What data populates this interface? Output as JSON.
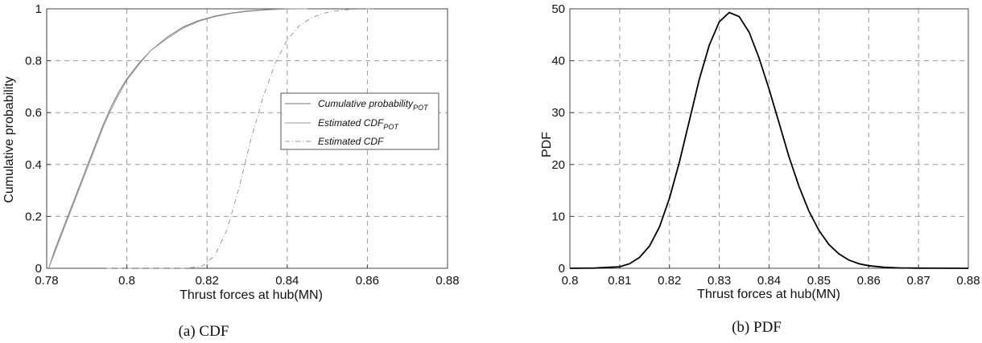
{
  "chart_data": [
    {
      "type": "line",
      "caption": "(a) CDF",
      "xlabel": "Thrust forces at hub(MN)",
      "ylabel": "Cumulative probability",
      "xlim": [
        0.78,
        0.88
      ],
      "ylim": [
        0,
        1
      ],
      "xticks": [
        "0.78",
        "0.8",
        "0.82",
        "0.84",
        "0.86",
        "0.88"
      ],
      "yticks": [
        "0",
        "0.2",
        "0.4",
        "0.6",
        "0.8",
        "1"
      ],
      "grid": true,
      "legend_position": "center-right",
      "series": [
        {
          "name": "Cumulative probability",
          "name_sub": "POT",
          "color": "#777777",
          "x": [
            0.7805,
            0.782,
            0.784,
            0.786,
            0.788,
            0.79,
            0.792,
            0.794,
            0.796,
            0.798,
            0.8,
            0.803,
            0.806,
            0.81,
            0.814,
            0.818,
            0.822,
            0.826,
            0.83,
            0.835,
            0.84,
            0.845
          ],
          "y": [
            0.0,
            0.07,
            0.15,
            0.23,
            0.31,
            0.39,
            0.47,
            0.55,
            0.62,
            0.68,
            0.73,
            0.79,
            0.84,
            0.89,
            0.93,
            0.955,
            0.972,
            0.984,
            0.992,
            0.997,
            1.0,
            1.0
          ]
        },
        {
          "name": "Estimated CDF",
          "name_sub": "POT",
          "color": "#999999",
          "x": [
            0.7805,
            0.782,
            0.784,
            0.786,
            0.788,
            0.79,
            0.792,
            0.794,
            0.796,
            0.798,
            0.8,
            0.803,
            0.806,
            0.81,
            0.814,
            0.818,
            0.822,
            0.826,
            0.83,
            0.835,
            0.84,
            0.845
          ],
          "y": [
            0.0,
            0.06,
            0.14,
            0.22,
            0.3,
            0.38,
            0.46,
            0.54,
            0.61,
            0.67,
            0.725,
            0.785,
            0.84,
            0.885,
            0.925,
            0.952,
            0.97,
            0.982,
            0.99,
            0.996,
            0.999,
            1.0
          ]
        },
        {
          "name": "Estimated CDF",
          "name_sub": "",
          "color": "#999999",
          "x": [
            0.795,
            0.805,
            0.815,
            0.819,
            0.822,
            0.825,
            0.828,
            0.831,
            0.834,
            0.837,
            0.84,
            0.843,
            0.846,
            0.849,
            0.852,
            0.855,
            0.858,
            0.862
          ],
          "y": [
            0.0,
            0.0,
            0.0,
            0.01,
            0.05,
            0.15,
            0.31,
            0.5,
            0.66,
            0.79,
            0.88,
            0.935,
            0.965,
            0.983,
            0.992,
            0.997,
            0.999,
            1.0
          ]
        }
      ]
    },
    {
      "type": "line",
      "caption": "(b) PDF",
      "xlabel": "Thrust forces at hub(MN)",
      "ylabel": "PDF",
      "xlim": [
        0.8,
        0.88
      ],
      "ylim": [
        0,
        50
      ],
      "xticks": [
        "0.8",
        "0.81",
        "0.82",
        "0.83",
        "0.84",
        "0.85",
        "0.86",
        "0.87",
        "0.88"
      ],
      "yticks": [
        "0",
        "10",
        "20",
        "30",
        "40",
        "50"
      ],
      "grid": true,
      "series": [
        {
          "color": "#000000",
          "x": [
            0.8,
            0.805,
            0.81,
            0.812,
            0.814,
            0.816,
            0.818,
            0.82,
            0.822,
            0.824,
            0.826,
            0.828,
            0.83,
            0.832,
            0.834,
            0.836,
            0.838,
            0.84,
            0.842,
            0.844,
            0.846,
            0.848,
            0.85,
            0.852,
            0.854,
            0.856,
            0.858,
            0.86,
            0.863,
            0.866,
            0.87,
            0.875,
            0.88
          ],
          "y": [
            0.0,
            0.05,
            0.3,
            0.9,
            2.1,
            4.3,
            8.0,
            13.5,
            20.5,
            28.5,
            36.5,
            43.0,
            47.5,
            49.3,
            48.5,
            45.5,
            40.5,
            34.5,
            28.0,
            21.5,
            15.8,
            11.0,
            7.3,
            4.6,
            2.8,
            1.6,
            0.9,
            0.5,
            0.2,
            0.08,
            0.03,
            0.01,
            0.0
          ]
        }
      ]
    }
  ]
}
